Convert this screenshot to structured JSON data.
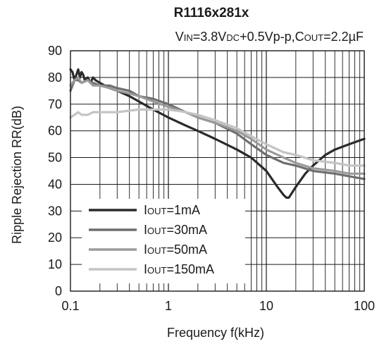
{
  "chart_data": {
    "type": "line",
    "title": "R1116x281x",
    "subtitle": {
      "parts": [
        {
          "t": "V",
          "sc": false
        },
        {
          "t": "IN",
          "sc": true
        },
        {
          "t": "=3.8V",
          "sc": false
        },
        {
          "t": "DC",
          "sc": true
        },
        {
          "t": "+0.5Vp-p,C",
          "sc": false
        },
        {
          "t": "OUT",
          "sc": true
        },
        {
          "t": "=2.2µF",
          "sc": false
        }
      ]
    },
    "xlabel": "Frequency f(kHz)",
    "ylabel": "Ripple Rejection RR(dB)",
    "x_scale": "log",
    "xlim": [
      0.1,
      100
    ],
    "ylim": [
      0,
      90
    ],
    "xticks": [
      {
        "value": 0.1,
        "label": "0.1"
      },
      {
        "value": 1,
        "label": "1"
      },
      {
        "value": 10,
        "label": "10"
      },
      {
        "value": 100,
        "label": "100"
      }
    ],
    "yticks": [
      0,
      10,
      20,
      30,
      40,
      50,
      60,
      70,
      80,
      90
    ],
    "grid": true,
    "legend_position": "bottom-left",
    "series": [
      {
        "name": "IOUT=1mA",
        "label_parts": [
          {
            "t": "I",
            "sc": false
          },
          {
            "t": "OUT",
            "sc": true
          },
          {
            "t": "=1mA",
            "sc": false
          }
        ],
        "color": "#2a2a2a",
        "x": [
          0.1,
          0.105,
          0.11,
          0.115,
          0.12,
          0.125,
          0.13,
          0.135,
          0.14,
          0.15,
          0.16,
          0.17,
          0.18,
          0.2,
          0.25,
          0.3,
          0.4,
          0.5,
          0.7,
          1,
          1.5,
          2,
          3,
          5,
          7,
          10,
          13,
          15,
          16,
          17,
          20,
          25,
          30,
          40,
          50,
          70,
          100
        ],
        "y": [
          83,
          82,
          79,
          81,
          83,
          80,
          82,
          81,
          79,
          80,
          78,
          80,
          79,
          78,
          76,
          75,
          73,
          71,
          68,
          65,
          62,
          60,
          57,
          53,
          50,
          45,
          39,
          36,
          35,
          35,
          39,
          44,
          47,
          51,
          53,
          55,
          57
        ]
      },
      {
        "name": "IOUT=30mA",
        "label_parts": [
          {
            "t": "I",
            "sc": false
          },
          {
            "t": "OUT",
            "sc": true
          },
          {
            "t": "=30mA",
            "sc": false
          }
        ],
        "color": "#6e6e6e",
        "x": [
          0.1,
          0.11,
          0.12,
          0.13,
          0.15,
          0.17,
          0.2,
          0.25,
          0.3,
          0.4,
          0.5,
          0.7,
          1,
          1.5,
          2,
          3,
          5,
          7,
          10,
          15,
          20,
          30,
          50,
          70,
          100
        ],
        "y": [
          75,
          79,
          79,
          78,
          79,
          78,
          77,
          77,
          76,
          75,
          73,
          72,
          70,
          67,
          65,
          63,
          59,
          55,
          51,
          48,
          47,
          45,
          44,
          43,
          42
        ]
      },
      {
        "name": "IOUT=50mA",
        "label_parts": [
          {
            "t": "I",
            "sc": false
          },
          {
            "t": "OUT",
            "sc": true
          },
          {
            "t": "=50mA",
            "sc": false
          }
        ],
        "color": "#9a9a9a",
        "x": [
          0.1,
          0.11,
          0.12,
          0.13,
          0.15,
          0.17,
          0.2,
          0.25,
          0.3,
          0.4,
          0.5,
          0.7,
          1,
          1.5,
          2,
          3,
          5,
          7,
          10,
          15,
          20,
          30,
          50,
          70,
          100
        ],
        "y": [
          77,
          79,
          80,
          78,
          79,
          77,
          77,
          76,
          75,
          74,
          73,
          71,
          69,
          67,
          65,
          63,
          60,
          57,
          53,
          50,
          48,
          46,
          45,
          44,
          44
        ]
      },
      {
        "name": "IOUT=150mA",
        "label_parts": [
          {
            "t": "I",
            "sc": false
          },
          {
            "t": "OUT",
            "sc": true
          },
          {
            "t": "=150mA",
            "sc": false
          }
        ],
        "color": "#c4c4c4",
        "x": [
          0.1,
          0.11,
          0.12,
          0.13,
          0.15,
          0.17,
          0.2,
          0.3,
          0.5,
          0.7,
          1,
          1.5,
          2,
          3,
          5,
          7,
          10,
          15,
          20,
          30,
          50,
          70,
          100
        ],
        "y": [
          65,
          66,
          67,
          66,
          66,
          67,
          67,
          67,
          68,
          68,
          68,
          67,
          66,
          64,
          61,
          58,
          55,
          52,
          51,
          49,
          48,
          47,
          47
        ]
      }
    ]
  }
}
